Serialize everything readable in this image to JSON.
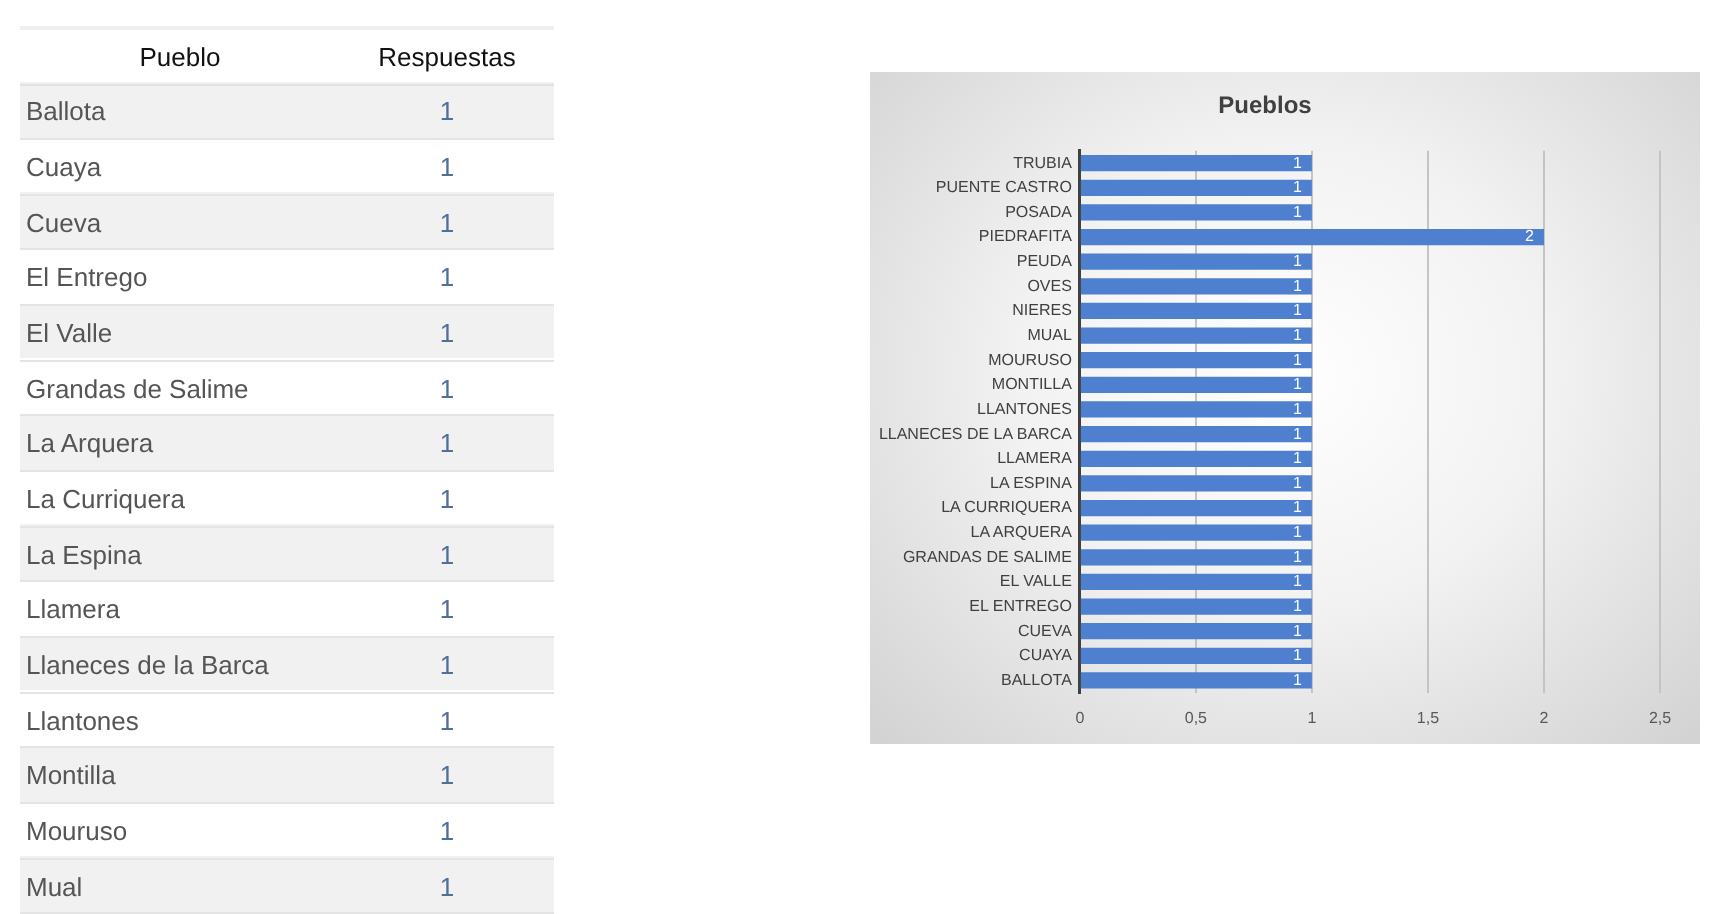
{
  "chart_data": [
    {
      "type": "other",
      "xlabel": "Pueblo",
      "ylabel": "Respuestas",
      "categories": [
        "Ballota",
        "Cuaya",
        "Cueva",
        "El Entrego",
        "El Valle",
        "Grandas de Salime",
        "La Arquera",
        "La Curriquera",
        "La Espina",
        "Llamera",
        "Llaneces de la Barca",
        "Llantones",
        "Montilla",
        "Mouruso",
        "Mual"
      ],
      "values": [
        1,
        1,
        1,
        1,
        1,
        1,
        1,
        1,
        1,
        1,
        1,
        1,
        1,
        1,
        1
      ],
      "data_labels": true
    },
    {
      "type": "bar",
      "orientation": "horizontal",
      "title": "Pueblos",
      "categories": [
        "TRUBIA",
        "PUENTE CASTRO",
        "POSADA",
        "PIEDRAFITA",
        "PEUDA",
        "OVES",
        "NIERES",
        "MUAL",
        "MOURUSO",
        "MONTILLA",
        "LLANTONES",
        "LLANECES DE LA BARCA",
        "LLAMERA",
        "LA ESPINA",
        "LA CURRIQUERA",
        "LA ARQUERA",
        "GRANDAS DE SALIME",
        "EL VALLE",
        "EL ENTREGO",
        "CUEVA",
        "CUAYA",
        "BALLOTA"
      ],
      "values": [
        1,
        1,
        1,
        2,
        1,
        1,
        1,
        1,
        1,
        1,
        1,
        1,
        1,
        1,
        1,
        1,
        1,
        1,
        1,
        1,
        1,
        1
      ],
      "color": "#4f7fcf",
      "xlim": [
        0,
        2.5
      ],
      "xticks": [
        0,
        {
          "value": 0.5,
          "label": "0,5"
        },
        1,
        {
          "value": 1.5,
          "label": "1,5"
        },
        2,
        {
          "value": 2.5,
          "label": "2,5"
        }
      ],
      "grid": "x",
      "data_labels": true
    }
  ]
}
